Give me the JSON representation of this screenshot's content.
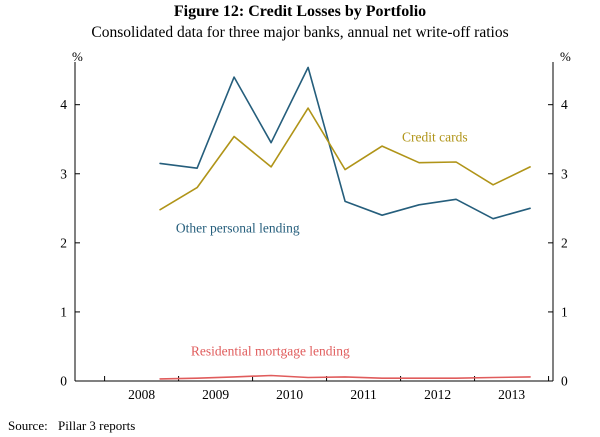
{
  "chart_data": {
    "type": "line",
    "title": "Figure 12: Credit Losses by Portfolio",
    "subtitle": "Consolidated data for three major banks, annual net write-off ratios",
    "y_unit_left": "%",
    "y_unit_right": "%",
    "xlim": [
      2007.1,
      2013.56
    ],
    "ylim": [
      0,
      4.56
    ],
    "x": [
      2008.25,
      2008.75,
      2009.25,
      2009.75,
      2010.25,
      2010.75,
      2011.25,
      2011.75,
      2012.25,
      2012.75,
      2013.25
    ],
    "series": [
      {
        "name": "Other personal lending",
        "color": "#255e7c",
        "values": [
          3.15,
          3.08,
          4.4,
          3.45,
          4.54,
          2.6,
          2.4,
          2.55,
          2.63,
          2.35,
          2.5
        ]
      },
      {
        "name": "Credit cards",
        "color": "#b09418",
        "values": [
          2.48,
          2.8,
          3.54,
          3.1,
          3.95,
          3.06,
          3.4,
          3.16,
          3.17,
          2.84,
          3.1
        ]
      },
      {
        "name": "Residential mortgage lending",
        "color": "#e05c5c",
        "values": [
          0.03,
          0.04,
          0.06,
          0.08,
          0.05,
          0.06,
          0.04,
          0.04,
          0.04,
          0.05,
          0.06
        ]
      }
    ],
    "annotations": [
      {
        "text": "Credit cards",
        "x": 2011.52,
        "y": 3.47,
        "anchor": "start",
        "series": 1
      },
      {
        "text": "Other personal lending",
        "x": 2009.3,
        "y": 2.15,
        "anchor": "middle",
        "series": 0
      },
      {
        "text": "Residential mortgage lending",
        "x": 2009.74,
        "y": 0.37,
        "anchor": "middle",
        "series": 2
      }
    ],
    "xtick_labels": [
      {
        "label": "2008",
        "x": 2008
      },
      {
        "label": "2009",
        "x": 2009
      },
      {
        "label": "2010",
        "x": 2010
      },
      {
        "label": "2011",
        "x": 2011
      },
      {
        "label": "2012",
        "x": 2012
      },
      {
        "label": "2013",
        "x": 2013
      }
    ],
    "xtick_marks": [
      2007.5,
      2008.5,
      2009.5,
      2010.5,
      2011.5,
      2012.5,
      2013.5
    ],
    "yticks": [
      0,
      1,
      2,
      3,
      4
    ],
    "grid": false,
    "legend_position": "inline-annotations"
  },
  "source": {
    "label": "Source:",
    "value": "Pillar 3 reports"
  }
}
